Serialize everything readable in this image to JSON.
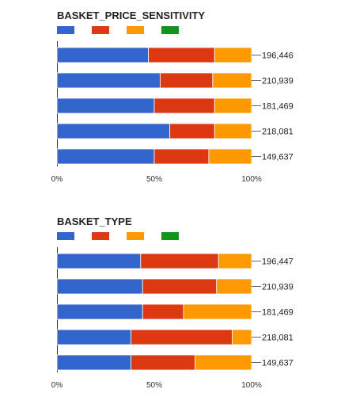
{
  "chart_data": [
    {
      "type": "bar",
      "stacked": "percent",
      "orientation": "horizontal",
      "title": "BASKET_PRICE_SENSITIVITY",
      "xlim": [
        0,
        100
      ],
      "x_ticks": [
        "0%",
        "50%",
        "100%"
      ],
      "legend": "top-left",
      "totals": [
        "196,446",
        "210,939",
        "181,469",
        "218,081",
        "149,637"
      ],
      "series": [
        {
          "color": "#3366cc",
          "values": [
            47,
            53,
            50,
            58,
            50
          ]
        },
        {
          "color": "#dc3912",
          "values": [
            34,
            27,
            31,
            23,
            28
          ]
        },
        {
          "color": "#ff9900",
          "values": [
            19,
            20,
            19,
            19,
            22
          ]
        },
        {
          "color": "#109618",
          "values": [
            0,
            0,
            0,
            0,
            0
          ]
        }
      ]
    },
    {
      "type": "bar",
      "stacked": "percent",
      "orientation": "horizontal",
      "title": "BASKET_TYPE",
      "xlim": [
        0,
        100
      ],
      "x_ticks": [
        "0%",
        "50%",
        "100%"
      ],
      "legend": "top-left",
      "totals": [
        "196,447",
        "210,939",
        "181,469",
        "218,081",
        "149,637"
      ],
      "series": [
        {
          "color": "#3366cc",
          "values": [
            43,
            44,
            44,
            38,
            38
          ]
        },
        {
          "color": "#dc3912",
          "values": [
            40,
            38,
            21,
            52,
            33
          ]
        },
        {
          "color": "#ff9900",
          "values": [
            17,
            18,
            35,
            10,
            29
          ]
        },
        {
          "color": "#109618",
          "values": [
            0,
            0,
            0,
            0,
            0
          ]
        }
      ]
    }
  ]
}
